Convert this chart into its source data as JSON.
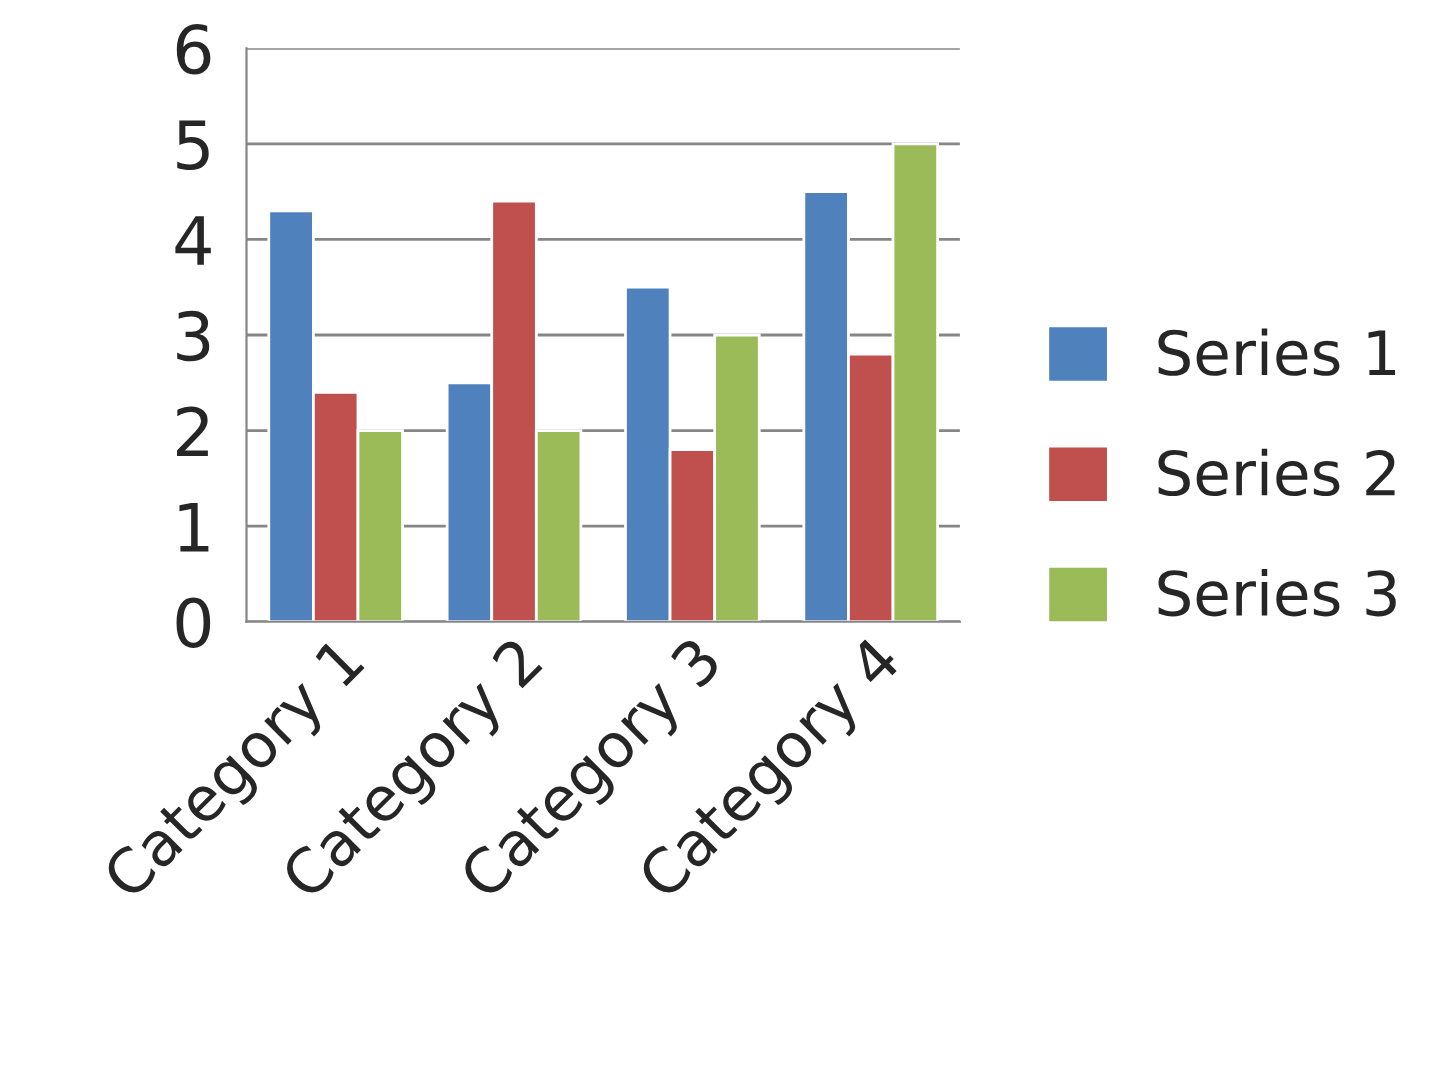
{
  "chart_data": {
    "type": "bar",
    "categories": [
      "Category 1",
      "Category 2",
      "Category 3",
      "Category 4"
    ],
    "series": [
      {
        "name": "Series 1",
        "color": "#4f81bd",
        "values": [
          4.3,
          2.5,
          3.5,
          4.5
        ]
      },
      {
        "name": "Series 2",
        "color": "#c0504d",
        "values": [
          2.4,
          4.4,
          1.8,
          2.8
        ]
      },
      {
        "name": "Series 3",
        "color": "#9bbb59",
        "values": [
          2,
          2,
          3,
          5
        ]
      }
    ],
    "ylim": [
      0,
      6
    ],
    "yticks": [
      0,
      1,
      2,
      3,
      4,
      5,
      6
    ],
    "grid": "y",
    "legend": "right"
  }
}
